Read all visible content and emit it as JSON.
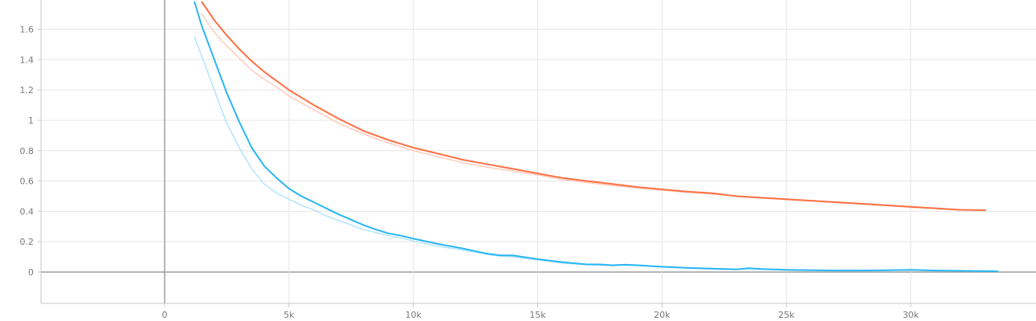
{
  "chart_data": {
    "type": "line",
    "title": "",
    "xlabel": "",
    "ylabel": "",
    "xlim": [
      -5000,
      35000
    ],
    "ylim": [
      -0.2,
      1.8
    ],
    "grid": true,
    "legend": "none",
    "x_ticks": [
      0,
      5000,
      10000,
      15000,
      20000,
      25000,
      30000
    ],
    "x_tick_labels": [
      "0",
      "5k",
      "10k",
      "15k",
      "20k",
      "25k",
      "30k"
    ],
    "y_ticks": [
      0,
      0.2,
      0.4,
      0.6,
      0.8,
      1.0,
      1.2,
      1.4,
      1.6
    ],
    "y_tick_labels": [
      "0",
      "0.2",
      "0.4",
      "0.6",
      "0.8",
      "1",
      "1.2",
      "1.4",
      "1.6"
    ],
    "series": [
      {
        "color": "#ff7043",
        "raw_color": "#ffccbc",
        "x": [
          1500,
          2000,
          2500,
          3000,
          3500,
          4000,
          4500,
          5000,
          6000,
          7000,
          8000,
          9000,
          10000,
          11000,
          12000,
          13000,
          14000,
          15000,
          16000,
          17000,
          18000,
          19000,
          20000,
          21000,
          22000,
          23000,
          24000,
          25000,
          26000,
          27000,
          28000,
          29000,
          30000,
          31000,
          32000,
          33000
        ],
        "values": [
          1.78,
          1.66,
          1.56,
          1.47,
          1.39,
          1.32,
          1.26,
          1.2,
          1.1,
          1.01,
          0.93,
          0.87,
          0.82,
          0.78,
          0.74,
          0.71,
          0.68,
          0.65,
          0.62,
          0.6,
          0.58,
          0.56,
          0.545,
          0.53,
          0.52,
          0.5,
          0.49,
          0.48,
          0.47,
          0.46,
          0.45,
          0.44,
          0.43,
          0.42,
          0.41,
          0.408
        ],
        "raw_values": [
          1.7,
          1.58,
          1.49,
          1.41,
          1.33,
          1.27,
          1.22,
          1.16,
          1.07,
          0.98,
          0.91,
          0.85,
          0.8,
          0.76,
          0.72,
          0.69,
          0.665,
          0.64,
          0.61,
          0.59,
          0.57,
          0.555,
          0.54,
          0.525,
          0.515,
          0.5,
          0.488,
          0.478,
          0.468,
          0.458,
          0.448,
          0.438,
          0.428,
          0.418,
          0.41,
          0.405
        ]
      },
      {
        "color": "#29b6f6",
        "raw_color": "#b3e5fc",
        "x": [
          1200,
          1500,
          2000,
          2500,
          3000,
          3500,
          4000,
          4500,
          5000,
          5500,
          6000,
          6500,
          7000,
          7500,
          8000,
          8500,
          9000,
          9500,
          10000,
          11000,
          12000,
          13000,
          13500,
          14000,
          15000,
          16000,
          17000,
          17500,
          18000,
          18500,
          19000,
          20000,
          21000,
          22000,
          23000,
          23500,
          24000,
          25000,
          26000,
          27000,
          28000,
          29000,
          30000,
          31000,
          32000,
          33000,
          33500
        ],
        "values": [
          1.78,
          1.62,
          1.4,
          1.18,
          0.99,
          0.82,
          0.7,
          0.62,
          0.55,
          0.5,
          0.46,
          0.42,
          0.38,
          0.345,
          0.31,
          0.28,
          0.255,
          0.24,
          0.22,
          0.185,
          0.155,
          0.12,
          0.11,
          0.11,
          0.085,
          0.065,
          0.05,
          0.05,
          0.045,
          0.048,
          0.045,
          0.035,
          0.028,
          0.022,
          0.018,
          0.025,
          0.02,
          0.015,
          0.012,
          0.01,
          0.01,
          0.012,
          0.015,
          0.01,
          0.008,
          0.006,
          0.005
        ],
        "raw_values": [
          1.55,
          1.42,
          1.2,
          0.98,
          0.82,
          0.68,
          0.58,
          0.52,
          0.48,
          0.44,
          0.41,
          0.37,
          0.34,
          0.31,
          0.28,
          0.26,
          0.24,
          0.225,
          0.205,
          0.17,
          0.145,
          0.115,
          0.105,
          0.1,
          0.08,
          0.06,
          0.048,
          0.045,
          0.042,
          0.046,
          0.043,
          0.033,
          0.026,
          0.02,
          0.017,
          0.022,
          0.018,
          0.013,
          0.011,
          0.009,
          0.009,
          0.011,
          0.013,
          0.009,
          0.007,
          0.005,
          0.004
        ]
      }
    ]
  }
}
